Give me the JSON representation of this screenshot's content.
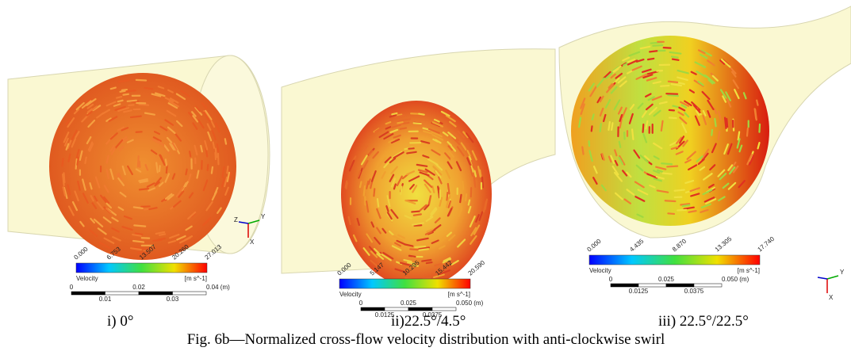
{
  "panels": [
    {
      "label": "i) 0°",
      "colorbar": {
        "ticks": [
          "0.000",
          "6.753",
          "13.507",
          "20.260",
          "27.013"
        ],
        "title": "Velocity",
        "unit": "[m s^-1]"
      },
      "scale": {
        "top": [
          "0",
          "0.02",
          "0.04 (m)"
        ],
        "bottom": [
          "0.01",
          "0.03"
        ]
      },
      "triad": [
        "Z",
        "Y",
        "X"
      ]
    },
    {
      "label": "ii)22.5°/4.5°",
      "colorbar": {
        "ticks": [
          "0.000",
          "5.147",
          "10.295",
          "15.442",
          "20.590"
        ],
        "title": "Velocity",
        "unit": "[m s^-1]"
      },
      "scale": {
        "top": [
          "0",
          "0.025",
          "0.050 (m)"
        ],
        "bottom": [
          "0.0125",
          "0.0375"
        ]
      }
    },
    {
      "label": "iii) 22.5°/22.5°",
      "colorbar": {
        "ticks": [
          "0.000",
          "4.435",
          "8.870",
          "13.305",
          "17.740"
        ],
        "title": "Velocity",
        "unit": "[m s^-1]"
      },
      "scale": {
        "top": [
          "0",
          "0.025",
          "0.050 (m)"
        ],
        "bottom": [
          "0.0125",
          "0.0375"
        ]
      },
      "triad": [
        "Y",
        "X"
      ]
    }
  ],
  "caption": "Fig. 6b—Normalized cross-flow velocity distribution with anti-clockwise swirl"
}
